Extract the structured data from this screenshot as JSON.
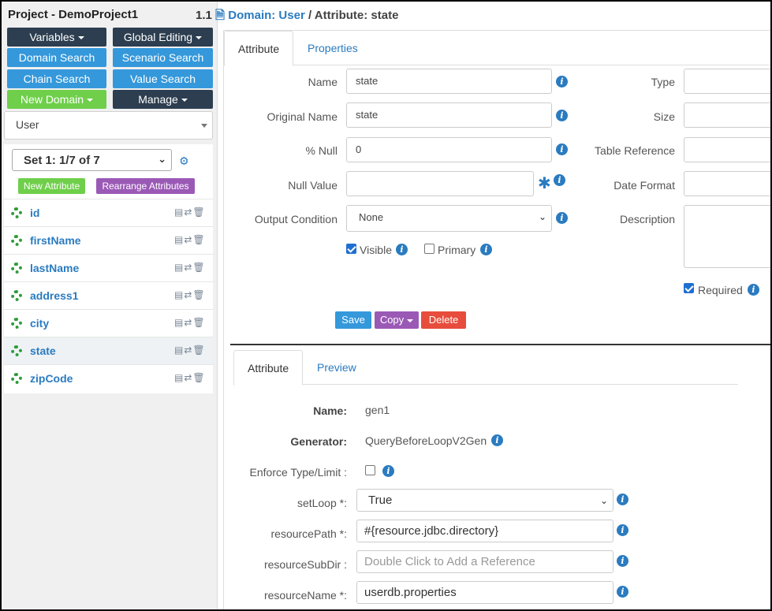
{
  "project": {
    "title": "Project - DemoProject1"
  },
  "menu": {
    "variables": "Variables",
    "global_editing": "Global Editing",
    "domain_search": "Domain Search",
    "scenario_search": "Scenario Search",
    "chain_search": "Chain Search",
    "value_search": "Value Search",
    "new_domain": "New Domain",
    "manage": "Manage"
  },
  "domain_select": {
    "value": "User"
  },
  "attribute_set": {
    "selected": "Set 1: 1/7 of 7",
    "new_attribute": "New Attribute",
    "rearrange": "Rearrange Attributes"
  },
  "attributes": [
    {
      "name": "id"
    },
    {
      "name": "firstName"
    },
    {
      "name": "lastName"
    },
    {
      "name": "address1"
    },
    {
      "name": "city"
    },
    {
      "name": "state"
    },
    {
      "name": "zipCode"
    }
  ],
  "breadcrumb": {
    "version": "1.1",
    "domain": "Domain: User",
    "separator": " / ",
    "attribute": "Attribute: state"
  },
  "top_tabs": {
    "attribute": "Attribute",
    "properties": "Properties"
  },
  "form": {
    "name_label": "Name",
    "name_value": "state",
    "original_name_label": "Original Name",
    "original_name_value": "state",
    "null_pct_label": "% Null",
    "null_pct_value": "0",
    "null_value_label": "Null Value",
    "null_value_value": "",
    "output_condition_label": "Output Condition",
    "output_condition_value": "None",
    "visible_label": "Visible",
    "visible_checked": true,
    "primary_label": "Primary",
    "primary_checked": false,
    "type_label": "Type",
    "size_label": "Size",
    "table_ref_label": "Table Reference",
    "date_format_label": "Date Format",
    "description_label": "Description",
    "required_label": "Required",
    "required_checked": true
  },
  "actions": {
    "save": "Save",
    "copy": "Copy",
    "delete": "Delete"
  },
  "gen_tabs": {
    "attribute": "Attribute",
    "preview": "Preview"
  },
  "generator": {
    "name_label": "Name:",
    "name_value": "gen1",
    "generator_label": "Generator:",
    "generator_value": "QueryBeforeLoopV2Gen",
    "enforce_label": "Enforce Type/Limit :",
    "setloop_label": "setLoop *:",
    "setloop_value": "True",
    "resource_path_label": "resourcePath *:",
    "resource_path_value": "#{resource.jdbc.directory}",
    "resource_subdir_label": "resourceSubDir :",
    "resource_subdir_placeholder": "Double Click to Add a Reference",
    "resource_name_label": "resourceName *:",
    "resource_name_value": "userdb.properties"
  },
  "colors": {
    "dark_button": "#2c3e50",
    "blue_button": "#3498db",
    "green_button": "#6fcf4b",
    "purple_button": "#9b59b6",
    "red_button": "#e74c3c",
    "link": "#2a7bc0",
    "lifebuoy": "#2e9c3a"
  }
}
